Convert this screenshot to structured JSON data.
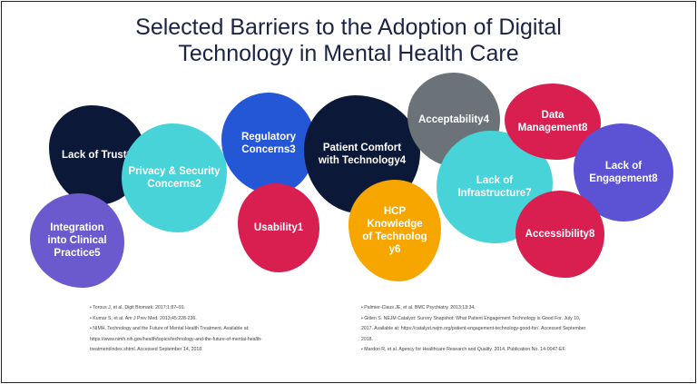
{
  "title": {
    "line1": "Selected Barriers to the Adoption of Digital",
    "line2": "Technology in Mental Health Care"
  },
  "colors": {
    "navy": "#0c1838",
    "purple": "#6a5acd",
    "cyan": "#48d3d8",
    "blue": "#2457d6",
    "crimson": "#d81f4f",
    "gray": "#6b7278",
    "orange": "#f7a600",
    "indigo": "#5b53d3"
  },
  "barriers": {
    "lack_of_trust": {
      "line1": "Lack of Trust1"
    },
    "integration": {
      "line1": "Integration",
      "line2": "into Clinical",
      "line3": "Practice5"
    },
    "privacy": {
      "line1": "Privacy & Security",
      "line2": "Concerns2"
    },
    "regulatory": {
      "line1": "Regulatory",
      "line2": "Concerns3"
    },
    "usability": {
      "line1": "Usability1"
    },
    "patient_comfort": {
      "line1": "Patient Comfort",
      "line2": "with Technology4"
    },
    "acceptability": {
      "line1": "Acceptability4"
    },
    "hcp_knowledge": {
      "line1": "HCP",
      "line2": "Knowledge",
      "line3": "of  Technolog",
      "line4": "y6"
    },
    "data_management": {
      "line1": "Data",
      "line2": "Management8"
    },
    "infrastructure": {
      "line1": "Lack of",
      "line2": "Infrastructure7"
    },
    "lack_of_engagement": {
      "line1": "Lack of",
      "line2": "Engagement8"
    },
    "accessibility": {
      "line1": "Accessibility8"
    }
  },
  "references": {
    "left": [
      "• Torous J, et al. Digit Biomark. 2017;1:87–91.",
      "• Kumar S, et al. Am J Prev Med. 2013;45:228-236.",
      "• NIMH. Technology and the Future of Mental Health Treatment. Available at:",
      "https://www.nimh.nih.gov/health/topics/technology-and-the-future-of-mental-health-",
      "treatment/index.shtml. Accessed September 14, 2018."
    ],
    "right": [
      "• Palmier-Claus JE, et al. BMC Psychiatry. 2013;13:34.",
      "• Gitlen S. NEJM Catalyst: Survey Snapshot: What Patient Engagement Technology is Good For. July 10,",
      "2017. Available at: https://catalyst.nejm.org/patient-engagement-technology-good-for/. Accessed September",
      "2018.",
      "• Mardon R, et al. Agency for Healthcare Research and Quality. 2014. Publication No. 14-0047-EF."
    ]
  }
}
